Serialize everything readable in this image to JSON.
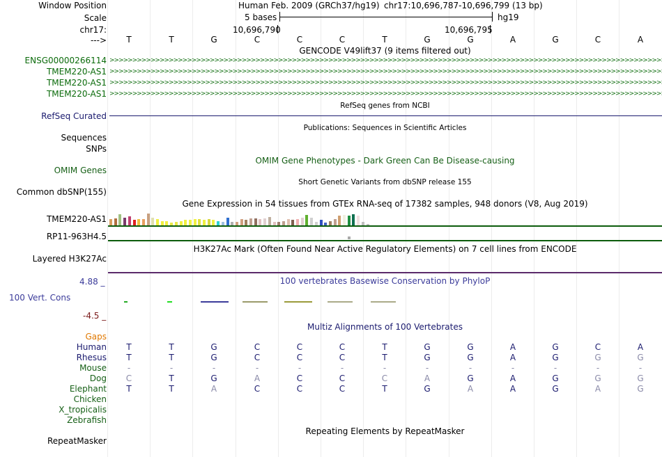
{
  "colors": {
    "gencode_green": "#0b6b0b",
    "refseq_navy": "#1a1a6e",
    "phylop_blue": "#3b3b9a",
    "omim_green": "#176017",
    "gaps_orange": "#e07800",
    "max_red": "#7a1a1a"
  },
  "ruler": {
    "window_label": "Window Position",
    "assembly": "Human Feb. 2009 (GRCh37/hg19)",
    "range": "chr17:10,696,787-10,696,799 (13 bp)",
    "scale_label": "Scale",
    "scale_value": "5 bases",
    "db": "hg19",
    "chrom_label": "chr17:",
    "pos_left": "10,696,790",
    "pos_right": "10,696,795",
    "arrow_label": "--->"
  },
  "sequence": [
    "T",
    "T",
    "G",
    "C",
    "C",
    "C",
    "T",
    "G",
    "G",
    "A",
    "G",
    "C",
    "A"
  ],
  "gencode": {
    "title": "GENCODE V49lift37 (9 items filtered out)",
    "tracks": [
      "ENSG00000266114",
      "TMEM220-AS1",
      "TMEM220-AS1",
      "TMEM220-AS1"
    ]
  },
  "refseq": {
    "title": "RefSeq genes from NCBI",
    "label": "RefSeq Curated"
  },
  "publications": {
    "title": "Publications: Sequences in Scientific Articles",
    "label1": "Sequences",
    "label2": "SNPs"
  },
  "omim": {
    "title": "OMIM Gene Phenotypes - Dark Green Can Be Disease-causing",
    "label": "OMIM Genes"
  },
  "dbsnp": {
    "title": "Short Genetic Variants from dbSNP release 155",
    "label": "Common dbSNP(155)"
  },
  "gtex": {
    "title": "Gene Expression in 54 tissues from GTEx RNA-seq of 17382 samples, 948 donors (V8, Aug 2019)",
    "gene1": "TMEM220-AS1",
    "gene2": "RP11-963H4.5",
    "levels": [
      0.5,
      0.55,
      0.9,
      0.6,
      0.7,
      0.45,
      0.5,
      0.5,
      0.95,
      0.6,
      0.5,
      0.35,
      0.35,
      0.2,
      0.25,
      0.35,
      0.45,
      0.45,
      0.5,
      0.5,
      0.45,
      0.5,
      0.45,
      0.35,
      0.25,
      0.6,
      0.25,
      0.3,
      0.5,
      0.45,
      0.55,
      0.55,
      0.5,
      0.55,
      0.65,
      0.25,
      0.3,
      0.35,
      0.5,
      0.45,
      0.5,
      0.6,
      0.85,
      0.6,
      0.3,
      0.45,
      0.2,
      0.35,
      0.5,
      0.75,
      0.85,
      0.8,
      0.9,
      0.8,
      0.25,
      0.1
    ],
    "bar_colors": [
      "#d8a060",
      "#b07040",
      "#a0c080",
      "#7a3a6a",
      "#c04070",
      "#e02020",
      "#f0c040",
      "#e8a060",
      "#c8a080",
      "#e0e0b0",
      "#f0f040",
      "#f0f040",
      "#f0f040",
      "#e8e848",
      "#e8e848",
      "#f0f040",
      "#f0f040",
      "#f0f040",
      "#f0f040",
      "#e0e040",
      "#f0f040",
      "#d8d840",
      "#f0f040",
      "#30d0d0",
      "#a0c0e0",
      "#3070d0",
      "#b0b0b0",
      "#d0a080",
      "#d0a080",
      "#a08060",
      "#c0a090",
      "#907060",
      "#e0c0c0",
      "#e0d0d0",
      "#c0b0a0",
      "#e0c0c0",
      "#a08070",
      "#c0a090",
      "#e0c0b0",
      "#806050",
      "#f0b0b0",
      "#e0d0d0",
      "#60b030",
      "#d0d0d0",
      "#d0d0d0",
      "#3050c0",
      "#4060c0",
      "#a08060",
      "#c0a090",
      "#d0a070",
      "#f0f0e0",
      "#209040",
      "#107050",
      "#f0e0e0",
      "#c0c0c0",
      "#c0c0c0"
    ]
  },
  "h3k27ac": {
    "title": "H3K27Ac Mark (Often Found Near Active Regulatory Elements) on 7 cell lines from ENCODE",
    "label": "Layered H3K27Ac"
  },
  "phylop": {
    "title": "100 vertebrates Basewise Conservation by PhyloP",
    "label": "100 Vert. Cons",
    "max": "4.88 _",
    "min": "-4.5 _"
  },
  "multiz": {
    "title": "Multiz Alignments of 100 Vertebrates",
    "gaps_label": "Gaps",
    "species": [
      {
        "name": "Human",
        "bases": [
          "T",
          "T",
          "G",
          "C",
          "C",
          "C",
          "T",
          "G",
          "G",
          "A",
          "G",
          "C",
          "A"
        ]
      },
      {
        "name": "Rhesus",
        "bases": [
          "T",
          "T",
          "G",
          "C",
          "C",
          "C",
          "T",
          "G",
          "G",
          "A",
          "G",
          "G",
          "G"
        ]
      },
      {
        "name": "Mouse",
        "bases": [
          "-",
          "-",
          "-",
          "-",
          "-",
          "-",
          "-",
          "-",
          "-",
          "-",
          "-",
          "-",
          "-"
        ]
      },
      {
        "name": "Dog",
        "bases": [
          "C",
          "T",
          "G",
          "A",
          "C",
          "C",
          "C",
          "A",
          "G",
          "A",
          "G",
          "G",
          "G"
        ]
      },
      {
        "name": "Elephant",
        "bases": [
          "T",
          "T",
          "A",
          "C",
          "C",
          "C",
          "T",
          "G",
          "A",
          "A",
          "G",
          "A",
          "G"
        ]
      },
      {
        "name": "Chicken",
        "bases": []
      },
      {
        "name": "X_tropicalis",
        "bases": []
      },
      {
        "name": "Zebrafish",
        "bases": []
      }
    ]
  },
  "repeatmasker": {
    "title": "Repeating Elements by RepeatMasker",
    "label": "RepeatMasker"
  }
}
